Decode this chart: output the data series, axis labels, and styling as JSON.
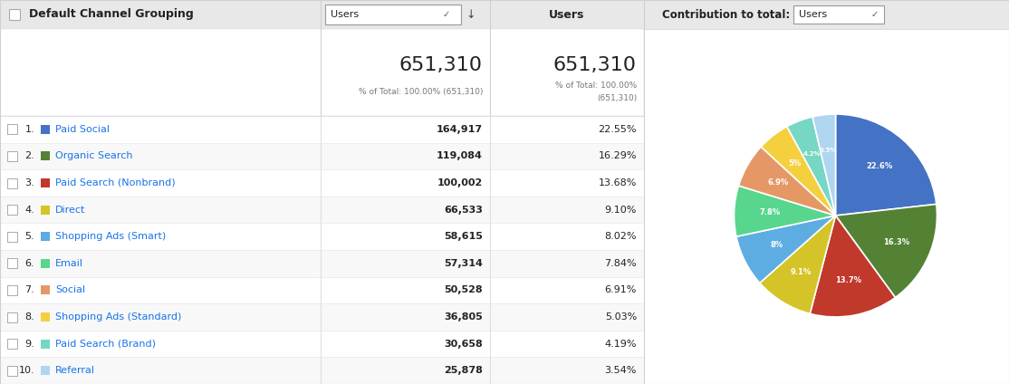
{
  "title_left": "Default Channel Grouping",
  "dropdown1_label": "Users",
  "col2_header": "Users",
  "contribution_label": "Contribution to total:",
  "total_value": "651,310",
  "total_pct_col2": "% of Total: 100.00% (651,310)",
  "total_pct_col3a": "% of Total: 100.00%",
  "total_pct_col3b": "(651,310)",
  "rows": [
    {
      "rank": 1,
      "name": "Paid Social",
      "color": "#4472c4",
      "users": "164,917",
      "pct": "22.55%"
    },
    {
      "rank": 2,
      "name": "Organic Search",
      "color": "#548235",
      "users": "119,084",
      "pct": "16.29%"
    },
    {
      "rank": 3,
      "name": "Paid Search (Nonbrand)",
      "color": "#c0392b",
      "users": "100,002",
      "pct": "13.68%"
    },
    {
      "rank": 4,
      "name": "Direct",
      "color": "#d4c427",
      "users": "66,533",
      "pct": "9.10%"
    },
    {
      "rank": 5,
      "name": "Shopping Ads (Smart)",
      "color": "#5dade2",
      "users": "58,615",
      "pct": "8.02%"
    },
    {
      "rank": 6,
      "name": "Email",
      "color": "#58d68d",
      "users": "57,314",
      "pct": "7.84%"
    },
    {
      "rank": 7,
      "name": "Social",
      "color": "#e59866",
      "users": "50,528",
      "pct": "6.91%"
    },
    {
      "rank": 8,
      "name": "Shopping Ads (Standard)",
      "color": "#f4d03f",
      "users": "36,805",
      "pct": "5.03%"
    },
    {
      "rank": 9,
      "name": "Paid Search (Brand)",
      "color": "#76d7c4",
      "users": "30,658",
      "pct": "4.19%"
    },
    {
      "rank": 10,
      "name": "Referral",
      "color": "#aed6f1",
      "users": "25,878",
      "pct": "3.54%"
    }
  ],
  "pie_values": [
    22.55,
    16.29,
    13.68,
    9.1,
    8.02,
    7.84,
    6.91,
    5.03,
    4.19,
    3.54
  ],
  "pie_colors": [
    "#4472c4",
    "#548235",
    "#c0392b",
    "#d4c427",
    "#5dade2",
    "#58d68d",
    "#e59866",
    "#f4d03f",
    "#76d7c4",
    "#aed6f1"
  ],
  "pie_labels": [
    "22.6%",
    "16.3%",
    "13.7%",
    "9.1%",
    "8%",
    "7.8%",
    "6.9%",
    "5%",
    "4.2%",
    "3.5%"
  ],
  "bg_color": "#ebebeb",
  "table_bg": "#ffffff",
  "header_bg": "#e8e8e8",
  "link_color": "#1a73e8",
  "text_color": "#222222",
  "border_color": "#d0d0d0"
}
